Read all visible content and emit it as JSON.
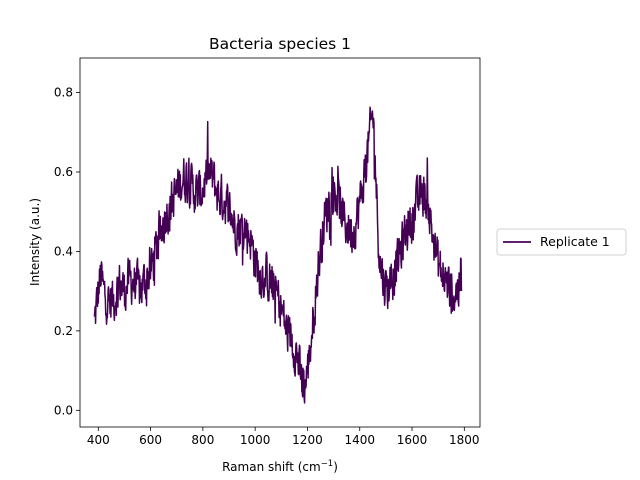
{
  "chart_data": {
    "type": "line",
    "title": "Bacteria species 1",
    "xlabel": "Raman shift (cm",
    "xlabel_sup": "−1",
    "xlabel_close": ")",
    "ylabel": "Intensity (a.u.)",
    "xlim": [
      330,
      1860
    ],
    "ylim": [
      -0.042,
      0.887
    ],
    "xticks": [
      400,
      600,
      800,
      1000,
      1200,
      1400,
      1600,
      1800
    ],
    "yticks": [
      0.0,
      0.2,
      0.4,
      0.6,
      0.8
    ],
    "ytick_labels": [
      "0.0",
      "0.2",
      "0.4",
      "0.6",
      "0.8"
    ],
    "grid": false,
    "legend_placement": "right-outside",
    "series": [
      {
        "name": "Replicate 1",
        "color": "#440154",
        "noise_amplitude": 0.05,
        "x": [
          385,
          400,
          410,
          420,
          440,
          460,
          480,
          500,
          520,
          540,
          560,
          580,
          600,
          620,
          640,
          660,
          680,
          700,
          720,
          740,
          760,
          780,
          800,
          820,
          840,
          860,
          880,
          900,
          920,
          940,
          960,
          980,
          1000,
          1020,
          1040,
          1060,
          1080,
          1100,
          1120,
          1140,
          1160,
          1170,
          1180,
          1190,
          1200,
          1210,
          1220,
          1240,
          1260,
          1280,
          1300,
          1320,
          1340,
          1360,
          1380,
          1400,
          1420,
          1440,
          1450,
          1460,
          1470,
          1480,
          1500,
          1520,
          1540,
          1560,
          1580,
          1600,
          1620,
          1640,
          1660,
          1680,
          1700,
          1720,
          1740,
          1760,
          1780,
          1790
        ],
        "y": [
          0.22,
          0.3,
          0.34,
          0.3,
          0.27,
          0.28,
          0.32,
          0.3,
          0.33,
          0.32,
          0.3,
          0.33,
          0.35,
          0.4,
          0.45,
          0.5,
          0.52,
          0.55,
          0.58,
          0.59,
          0.56,
          0.54,
          0.56,
          0.6,
          0.58,
          0.54,
          0.53,
          0.51,
          0.47,
          0.46,
          0.46,
          0.44,
          0.38,
          0.34,
          0.34,
          0.32,
          0.3,
          0.26,
          0.2,
          0.18,
          0.14,
          0.1,
          0.06,
          0.06,
          0.1,
          0.15,
          0.22,
          0.35,
          0.46,
          0.52,
          0.56,
          0.52,
          0.48,
          0.45,
          0.46,
          0.52,
          0.6,
          0.7,
          0.75,
          0.62,
          0.45,
          0.36,
          0.31,
          0.32,
          0.36,
          0.41,
          0.46,
          0.48,
          0.52,
          0.55,
          0.52,
          0.44,
          0.37,
          0.33,
          0.31,
          0.29,
          0.31,
          0.33
        ]
      }
    ]
  }
}
